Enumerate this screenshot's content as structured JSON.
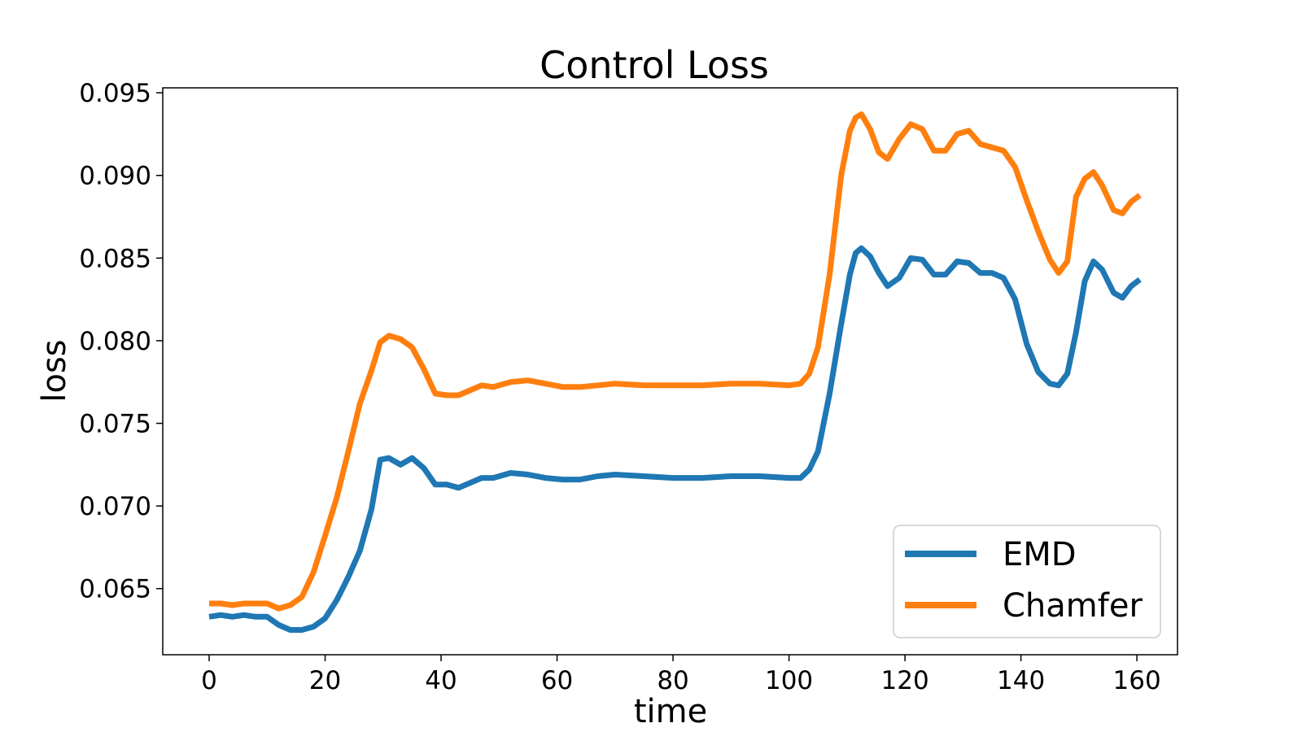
{
  "chart_data": {
    "type": "line",
    "title": "Control Loss",
    "xlabel": "time",
    "ylabel": "loss",
    "xlim": [
      -8,
      167
    ],
    "ylim": [
      0.061,
      0.0953
    ],
    "xticks": [
      0,
      20,
      40,
      60,
      80,
      100,
      120,
      140,
      160
    ],
    "yticks": [
      0.065,
      0.07,
      0.075,
      0.08,
      0.085,
      0.09,
      0.095
    ],
    "ytick_labels": [
      "0.065",
      "0.070",
      "0.075",
      "0.080",
      "0.085",
      "0.090",
      "0.095"
    ],
    "grid": false,
    "legend_position": "lower-right",
    "series": [
      {
        "name": "EMD",
        "color": "#1f77b4",
        "points": [
          [
            0,
            0.0633
          ],
          [
            2,
            0.0634
          ],
          [
            4,
            0.0633
          ],
          [
            6,
            0.0634
          ],
          [
            8,
            0.0633
          ],
          [
            10,
            0.0633
          ],
          [
            12,
            0.0628
          ],
          [
            14,
            0.0625
          ],
          [
            16,
            0.0625
          ],
          [
            18,
            0.0627
          ],
          [
            20,
            0.0632
          ],
          [
            22,
            0.0643
          ],
          [
            24,
            0.0657
          ],
          [
            26,
            0.0673
          ],
          [
            28,
            0.0698
          ],
          [
            29.5,
            0.0728
          ],
          [
            31,
            0.0729
          ],
          [
            33,
            0.0725
          ],
          [
            35,
            0.0729
          ],
          [
            37,
            0.0723
          ],
          [
            39,
            0.0713
          ],
          [
            41,
            0.0713
          ],
          [
            43,
            0.0711
          ],
          [
            45,
            0.0714
          ],
          [
            47,
            0.0717
          ],
          [
            49,
            0.0717
          ],
          [
            52,
            0.072
          ],
          [
            55,
            0.0719
          ],
          [
            58,
            0.0717
          ],
          [
            61,
            0.0716
          ],
          [
            64,
            0.0716
          ],
          [
            67,
            0.0718
          ],
          [
            70,
            0.0719
          ],
          [
            75,
            0.0718
          ],
          [
            80,
            0.0717
          ],
          [
            85,
            0.0717
          ],
          [
            90,
            0.0718
          ],
          [
            95,
            0.0718
          ],
          [
            100,
            0.0717
          ],
          [
            102,
            0.0717
          ],
          [
            103.5,
            0.0722
          ],
          [
            105,
            0.0733
          ],
          [
            107,
            0.0768
          ],
          [
            109,
            0.081
          ],
          [
            110.5,
            0.084
          ],
          [
            111.5,
            0.0853
          ],
          [
            112.5,
            0.0856
          ],
          [
            114,
            0.0851
          ],
          [
            115.5,
            0.0841
          ],
          [
            117,
            0.0833
          ],
          [
            119,
            0.0838
          ],
          [
            121,
            0.085
          ],
          [
            123,
            0.0849
          ],
          [
            125,
            0.084
          ],
          [
            127,
            0.084
          ],
          [
            129,
            0.0848
          ],
          [
            131,
            0.0847
          ],
          [
            133,
            0.0841
          ],
          [
            135,
            0.0841
          ],
          [
            137,
            0.0838
          ],
          [
            139,
            0.0825
          ],
          [
            141,
            0.0798
          ],
          [
            143,
            0.0781
          ],
          [
            145,
            0.0774
          ],
          [
            146.5,
            0.0773
          ],
          [
            148,
            0.078
          ],
          [
            149.5,
            0.0805
          ],
          [
            151,
            0.0836
          ],
          [
            152.5,
            0.0848
          ],
          [
            154,
            0.0843
          ],
          [
            156,
            0.0829
          ],
          [
            157.5,
            0.0826
          ],
          [
            159,
            0.0833
          ],
          [
            160.5,
            0.0837
          ]
        ]
      },
      {
        "name": "Chamfer",
        "color": "#ff7f0e",
        "points": [
          [
            0,
            0.0641
          ],
          [
            2,
            0.0641
          ],
          [
            4,
            0.064
          ],
          [
            6,
            0.0641
          ],
          [
            8,
            0.0641
          ],
          [
            10,
            0.0641
          ],
          [
            12,
            0.0638
          ],
          [
            14,
            0.064
          ],
          [
            16,
            0.0645
          ],
          [
            18,
            0.066
          ],
          [
            20,
            0.0682
          ],
          [
            22,
            0.0705
          ],
          [
            24,
            0.0733
          ],
          [
            26,
            0.0762
          ],
          [
            28,
            0.0782
          ],
          [
            29.5,
            0.0799
          ],
          [
            31,
            0.0803
          ],
          [
            33,
            0.0801
          ],
          [
            35,
            0.0796
          ],
          [
            37,
            0.0783
          ],
          [
            39,
            0.0768
          ],
          [
            41,
            0.0767
          ],
          [
            43,
            0.0767
          ],
          [
            45,
            0.077
          ],
          [
            47,
            0.0773
          ],
          [
            49,
            0.0772
          ],
          [
            52,
            0.0775
          ],
          [
            55,
            0.0776
          ],
          [
            58,
            0.0774
          ],
          [
            61,
            0.0772
          ],
          [
            64,
            0.0772
          ],
          [
            67,
            0.0773
          ],
          [
            70,
            0.0774
          ],
          [
            75,
            0.0773
          ],
          [
            80,
            0.0773
          ],
          [
            85,
            0.0773
          ],
          [
            90,
            0.0774
          ],
          [
            95,
            0.0774
          ],
          [
            100,
            0.0773
          ],
          [
            102,
            0.0774
          ],
          [
            103.5,
            0.078
          ],
          [
            105,
            0.0796
          ],
          [
            107,
            0.084
          ],
          [
            109,
            0.09
          ],
          [
            110.5,
            0.0927
          ],
          [
            111.5,
            0.0935
          ],
          [
            112.5,
            0.0937
          ],
          [
            114,
            0.0928
          ],
          [
            115.5,
            0.0914
          ],
          [
            117,
            0.091
          ],
          [
            119,
            0.0922
          ],
          [
            121,
            0.0931
          ],
          [
            123,
            0.0928
          ],
          [
            125,
            0.0915
          ],
          [
            127,
            0.0915
          ],
          [
            129,
            0.0925
          ],
          [
            131,
            0.0927
          ],
          [
            133,
            0.0919
          ],
          [
            135,
            0.0917
          ],
          [
            137,
            0.0915
          ],
          [
            139,
            0.0905
          ],
          [
            141,
            0.0885
          ],
          [
            143,
            0.0866
          ],
          [
            145,
            0.0849
          ],
          [
            146.5,
            0.0841
          ],
          [
            148,
            0.0848
          ],
          [
            149.5,
            0.0887
          ],
          [
            151,
            0.0898
          ],
          [
            152.5,
            0.0902
          ],
          [
            154,
            0.0894
          ],
          [
            156,
            0.0879
          ],
          [
            157.5,
            0.0877
          ],
          [
            159,
            0.0884
          ],
          [
            160.5,
            0.0888
          ]
        ]
      }
    ]
  }
}
